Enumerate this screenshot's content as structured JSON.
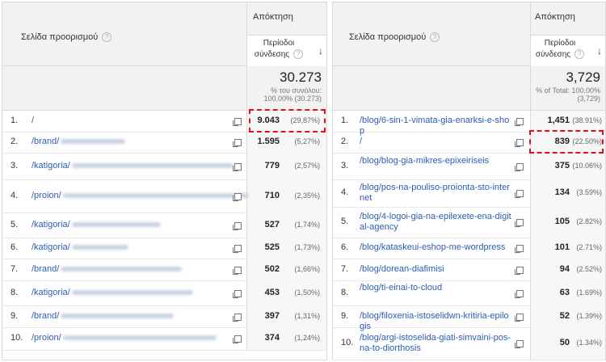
{
  "left": {
    "page_header": "Σελίδα προορισμού",
    "help_icon": "?",
    "acquisition_label": "Απόκτηση",
    "sessions_header_line1": "Περίοδοι",
    "sessions_header_line2": "σύνδεσης",
    "sort_icon": "↓",
    "total_value": "30.273",
    "total_line1": "% του συνόλου:",
    "total_line2": "100,00% (30.273)",
    "rows": [
      {
        "n": "1.",
        "path": "/",
        "value": "9.043",
        "pct": "(29,87%)"
      },
      {
        "n": "2.",
        "path": "/brand/",
        "value": "1.595",
        "pct": "(5,27%)"
      },
      {
        "n": "3.",
        "path": "/katigoria/",
        "value": "779",
        "pct": "(2,57%)"
      },
      {
        "n": "4.",
        "path": "/proion/",
        "value": "710",
        "pct": "(2,35%)"
      },
      {
        "n": "5.",
        "path": "/katigoria/",
        "value": "527",
        "pct": "(1,74%)"
      },
      {
        "n": "6.",
        "path": "/katigoria/",
        "value": "525",
        "pct": "(1,73%)"
      },
      {
        "n": "7.",
        "path": "/brand/",
        "value": "502",
        "pct": "(1,66%)"
      },
      {
        "n": "8.",
        "path": "/katigoria/",
        "value": "453",
        "pct": "(1,50%)"
      },
      {
        "n": "9.",
        "path": "/brand/",
        "value": "397",
        "pct": "(1,31%)"
      },
      {
        "n": "10.",
        "path": "/proion/",
        "value": "374",
        "pct": "(1,24%)"
      }
    ]
  },
  "right": {
    "page_header": "Σελίδα προορισμού",
    "help_icon": "?",
    "acquisition_label": "Απόκτηση",
    "sessions_header_line1": "Περίοδοι",
    "sessions_header_line2": "σύνδεσης",
    "sort_icon": "↓",
    "total_value": "3,729",
    "total_line1": "% of Total: 100.00%",
    "total_line2": "(3,729)",
    "rows": [
      {
        "n": "1.",
        "path": "/blog/6-sin-1-vimata-gia-enarksi-e-shop",
        "value": "1,451",
        "pct": "(38.91%)"
      },
      {
        "n": "2.",
        "path": "/",
        "value": "839",
        "pct": "(22.50%)"
      },
      {
        "n": "3.",
        "path": "/blog/blog-gia-mikres-epixeiriseis",
        "value": "375",
        "pct": "(10.06%)"
      },
      {
        "n": "4.",
        "path": "/blog/pos-na-pouliso-proionta-sto-internet",
        "value": "134",
        "pct": "(3.59%)"
      },
      {
        "n": "5.",
        "path": "/blog/4-logoi-gia-na-epilexete-ena-digital-agency",
        "value": "105",
        "pct": "(2.82%)"
      },
      {
        "n": "6.",
        "path": "/blog/kataskeui-eshop-me-wordpress",
        "value": "101",
        "pct": "(2.71%)"
      },
      {
        "n": "7.",
        "path": "/blog/dorean-diafimisi",
        "value": "94",
        "pct": "(2.52%)"
      },
      {
        "n": "8.",
        "path": "/blog/ti-einai-to-cloud",
        "value": "63",
        "pct": "(1.69%)"
      },
      {
        "n": "9.",
        "path": "/blog/filoxenia-istoselidwn-kritiria-epilogis",
        "value": "52",
        "pct": "(1.39%)"
      },
      {
        "n": "10.",
        "path": "/blog/argi-istoselida-giati-simvaini-pos-na-to-diorthosis",
        "value": "50",
        "pct": "(1.34%)"
      }
    ]
  }
}
